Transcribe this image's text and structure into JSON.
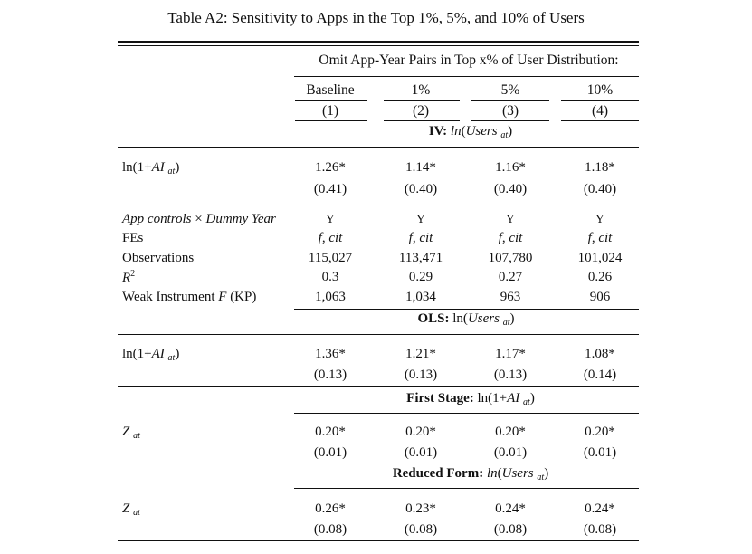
{
  "title": "Table A2: Sensitivity to Apps in the Top 1%, 5%, and 10% of Users",
  "header": {
    "spanner": "Omit App-Year Pairs in Top x% of User Distribution:",
    "columns": [
      "Baseline",
      "1%",
      "5%",
      "10%"
    ],
    "numbers": [
      "(1)",
      "(2)",
      "(3)",
      "(4)"
    ]
  },
  "panels": [
    {
      "title_bold": "IV:",
      "title_rest": "ln(Users at)",
      "rows": [
        {
          "label": "ln(1+AI at)",
          "values": [
            "1.26*",
            "1.14*",
            "1.16*",
            "1.18*"
          ],
          "se": [
            "(0.41)",
            "(0.40)",
            "(0.40)",
            "(0.40)"
          ]
        }
      ],
      "controls": [
        {
          "label": "App controls × Dummy Year",
          "values": [
            "Y",
            "Y",
            "Y",
            "Y"
          ]
        },
        {
          "label": "FEs",
          "values": [
            "f, cit",
            "f, cit",
            "f, cit",
            "f, cit"
          ]
        },
        {
          "label": "Observations",
          "values": [
            "115,027",
            "113,471",
            "107,780",
            "101,024"
          ]
        },
        {
          "label": "R2",
          "values": [
            "0.3",
            "0.29",
            "0.27",
            "0.26"
          ]
        },
        {
          "label": "Weak Instrument F (KP)",
          "values": [
            "1,063",
            "1,034",
            "963",
            "906"
          ]
        }
      ]
    },
    {
      "title_bold": "OLS:",
      "title_rest": "ln(Users at)",
      "rows": [
        {
          "label": "ln(1+AI at)",
          "values": [
            "1.36*",
            "1.21*",
            "1.17*",
            "1.08*"
          ],
          "se": [
            "(0.13)",
            "(0.13)",
            "(0.13)",
            "(0.14)"
          ]
        }
      ]
    },
    {
      "title_bold": "First Stage:",
      "title_rest": "ln(1+AI at)",
      "rows": [
        {
          "label": "Z at",
          "values": [
            "0.20*",
            "0.20*",
            "0.20*",
            "0.20*"
          ],
          "se": [
            "(0.01)",
            "(0.01)",
            "(0.01)",
            "(0.01)"
          ]
        }
      ]
    },
    {
      "title_bold": "Reduced Form:",
      "title_rest": "ln(Users at)",
      "rows": [
        {
          "label": "Z at",
          "values": [
            "0.26*",
            "0.23*",
            "0.24*",
            "0.24*"
          ],
          "se": [
            "(0.08)",
            "(0.08)",
            "(0.08)",
            "(0.08)"
          ]
        }
      ]
    }
  ]
}
